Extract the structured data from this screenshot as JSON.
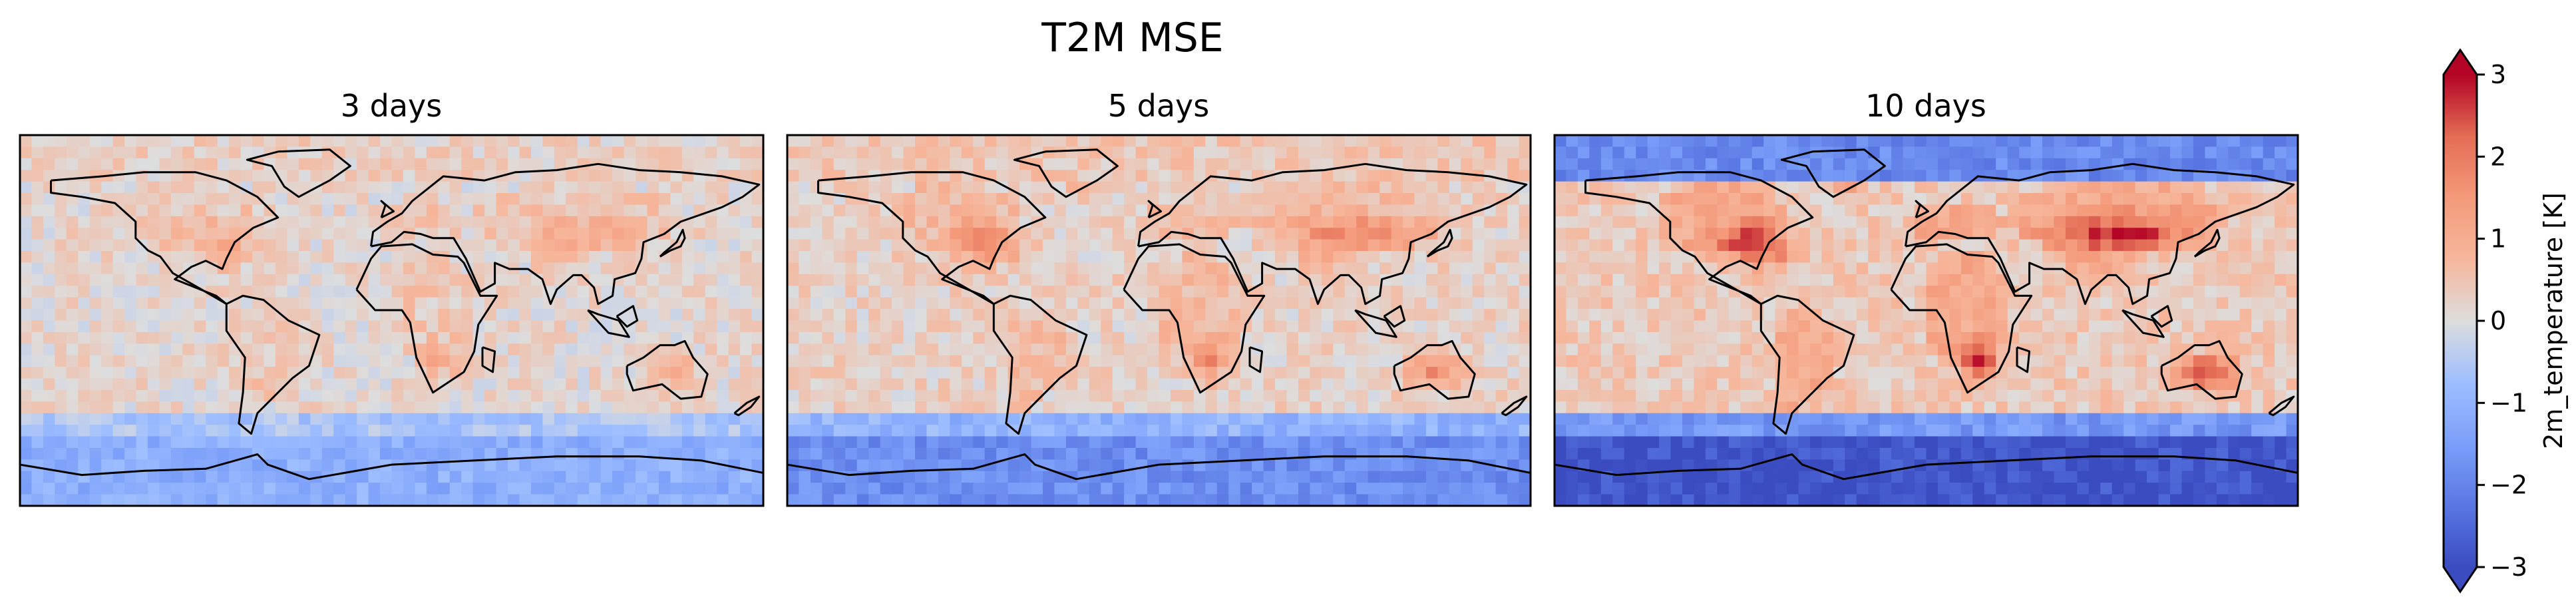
{
  "chart_data": {
    "type": "heatmap",
    "title": "T2M MSE",
    "panels": [
      {
        "title": "3 days",
        "intensity": 0.45
      },
      {
        "title": "5 days",
        "intensity": 0.72
      },
      {
        "title": "10 days",
        "intensity": 1.15
      }
    ],
    "colorbar": {
      "label": "2m_temperature [K]",
      "vmin": -3,
      "vmax": 3,
      "ticks": [
        3,
        2,
        1,
        0,
        -1,
        -2,
        -3
      ],
      "tick_labels": [
        "3",
        "2",
        "1",
        "0",
        "−1",
        "−2",
        "−3"
      ],
      "extend": "both",
      "colormap": "coolwarm"
    },
    "colors": {
      "low": "#3b4cc0",
      "mid": "#dddddd",
      "high": "#b40426"
    }
  }
}
